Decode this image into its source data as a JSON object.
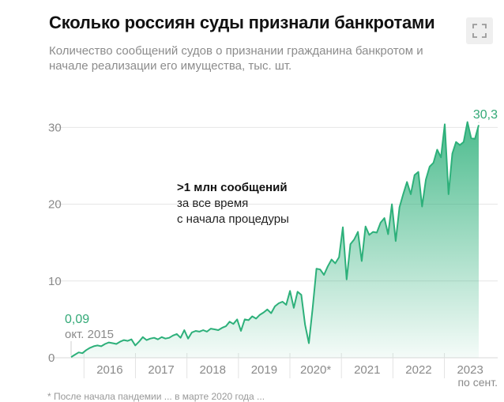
{
  "header": {
    "title": "Сколько россиян суды признали банкротами",
    "subtitle": "Количество сообщений судов о признании гражданина банкротом и начале реализации его имущества, тыс. шт."
  },
  "icons": {
    "expand": "expand-icon"
  },
  "colors": {
    "accent": "#2db07a",
    "label_green": "#33a977",
    "grid": "#e6e6e6",
    "axis_text": "#8a8a8a"
  },
  "annotation": {
    "bold": ">1 млн сообщений",
    "line2": "за все время",
    "line3": "с начала процедуры"
  },
  "labels": {
    "first_value": "0,09",
    "first_date": "окт. 2015",
    "last_value": "30,3",
    "last_date": "по сент."
  },
  "footnote": "* После начала пандемии ... в марте 2020 года ...",
  "chart_data": {
    "type": "area",
    "title": "Сколько россиян суды признали банкротами",
    "ylim": [
      0,
      36
    ],
    "yticks": [
      0,
      10,
      20,
      30
    ],
    "grid": true,
    "x_labels": [
      "2016",
      "2017",
      "2018",
      "2019",
      "2020*",
      "2021",
      "2022",
      "2023"
    ],
    "x_start": "2015-10",
    "x_end": "2023-09",
    "values": [
      0.09,
      0.4,
      0.7,
      0.6,
      1.0,
      1.3,
      1.5,
      1.6,
      1.5,
      1.8,
      2.0,
      1.9,
      1.8,
      2.1,
      2.3,
      2.2,
      2.4,
      1.6,
      2.1,
      2.7,
      2.3,
      2.5,
      2.6,
      2.4,
      2.7,
      2.5,
      2.6,
      2.9,
      3.1,
      2.6,
      3.6,
      2.5,
      3.3,
      3.5,
      3.4,
      3.6,
      3.4,
      3.8,
      3.7,
      3.6,
      3.9,
      4.1,
      4.7,
      4.4,
      5.0,
      3.5,
      5.0,
      4.9,
      5.4,
      5.1,
      5.6,
      5.9,
      6.3,
      5.8,
      6.7,
      7.1,
      7.3,
      6.9,
      8.7,
      6.5,
      8.6,
      8.2,
      4.3,
      1.9,
      6.5,
      11.6,
      11.5,
      10.8,
      11.9,
      12.8,
      12.3,
      13.1,
      17.0,
      10.2,
      14.8,
      15.4,
      16.4,
      12.6,
      17.1,
      16.0,
      16.4,
      16.3,
      17.6,
      18.2,
      16.1,
      20.0,
      15.2,
      19.6,
      21.3,
      22.9,
      21.3,
      23.8,
      24.2,
      19.7,
      23.2,
      24.9,
      25.4,
      27.1,
      26.1,
      30.4,
      21.3,
      26.6,
      28.1,
      27.7,
      28.1,
      30.7,
      28.6,
      28.5,
      30.3
    ]
  }
}
